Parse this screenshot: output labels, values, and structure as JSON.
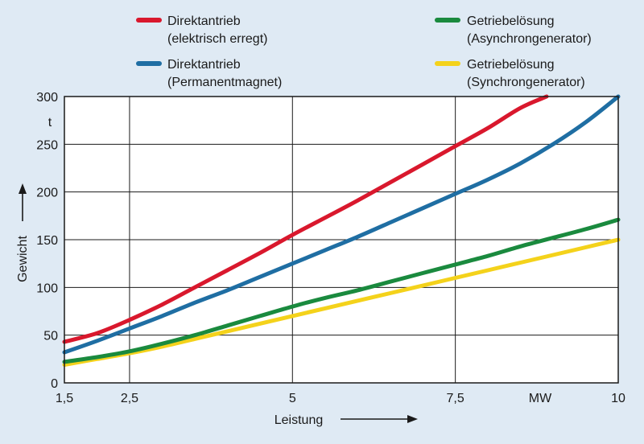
{
  "chart_data": {
    "type": "line",
    "title": "",
    "xlabel": "Leistung",
    "ylabel": "Gewicht",
    "x_unit": "MW",
    "y_unit": "t",
    "xlim": [
      1.5,
      10
    ],
    "ylim": [
      0,
      300
    ],
    "x_ticks": [
      1.5,
      2.5,
      5,
      7.5,
      10
    ],
    "x_tick_labels": [
      "1,5",
      "2,5",
      "5",
      "7,5",
      "10"
    ],
    "y_ticks": [
      0,
      50,
      100,
      150,
      200,
      250,
      300
    ],
    "y_tick_labels": [
      "0",
      "50",
      "100",
      "150",
      "200",
      "250",
      "300"
    ],
    "grid": true,
    "legend_position": "top",
    "series": [
      {
        "name": "Direktantrieb (elektrisch erregt)",
        "label_line1": "Direktantrieb",
        "label_line2": "(elektrisch erregt)",
        "color": "#d9182d",
        "x": [
          1.5,
          2.0,
          2.5,
          3.0,
          3.5,
          4.0,
          4.5,
          5.0,
          5.5,
          6.0,
          6.5,
          7.0,
          7.5,
          8.0,
          8.5,
          8.9
        ],
        "y": [
          43,
          52,
          66,
          82,
          100,
          118,
          136,
          155,
          173,
          191,
          210,
          229,
          248,
          267,
          288,
          300
        ]
      },
      {
        "name": "Direktantrieb (Permanentmagnet)",
        "label_line1": "Direktantrieb",
        "label_line2": "(Permanentmagnet)",
        "color": "#1f6ea3",
        "x": [
          1.5,
          2.0,
          2.5,
          3.0,
          3.5,
          4.0,
          4.5,
          5.0,
          5.5,
          6.0,
          6.5,
          7.0,
          7.5,
          8.0,
          8.5,
          9.0,
          9.5,
          10.0
        ],
        "y": [
          32,
          44,
          57,
          70,
          84,
          97,
          111,
          125,
          139,
          153,
          168,
          183,
          198,
          213,
          230,
          250,
          273,
          300
        ]
      },
      {
        "name": "Getriebelösung (Asynchrongenerator)",
        "label_line1": "Getriebelösung",
        "label_line2": "(Asynchrongenerator)",
        "color": "#1a8a3e",
        "x": [
          1.5,
          2.0,
          2.5,
          3.0,
          3.5,
          4.0,
          4.5,
          5.0,
          5.5,
          6.0,
          6.5,
          7.0,
          7.5,
          8.0,
          8.5,
          9.0,
          9.5,
          10.0
        ],
        "y": [
          22,
          27,
          33,
          41,
          50,
          60,
          70,
          80,
          89,
          97,
          106,
          115,
          124,
          133,
          143,
          152,
          161,
          171
        ]
      },
      {
        "name": "Getriebelösung (Synchrongenerator)",
        "label_line1": "Getriebelösung",
        "label_line2": "(Synchrongenerator)",
        "color": "#f4d21b",
        "x": [
          1.5,
          2.0,
          2.5,
          3.0,
          3.5,
          4.0,
          4.5,
          5.0,
          5.5,
          6.0,
          6.5,
          7.0,
          7.5,
          8.0,
          8.5,
          9.0,
          9.5,
          10.0
        ],
        "y": [
          19,
          25,
          31,
          38,
          46,
          54,
          62,
          70,
          78,
          86,
          94,
          102,
          110,
          118,
          126,
          134,
          142,
          150
        ]
      }
    ]
  }
}
